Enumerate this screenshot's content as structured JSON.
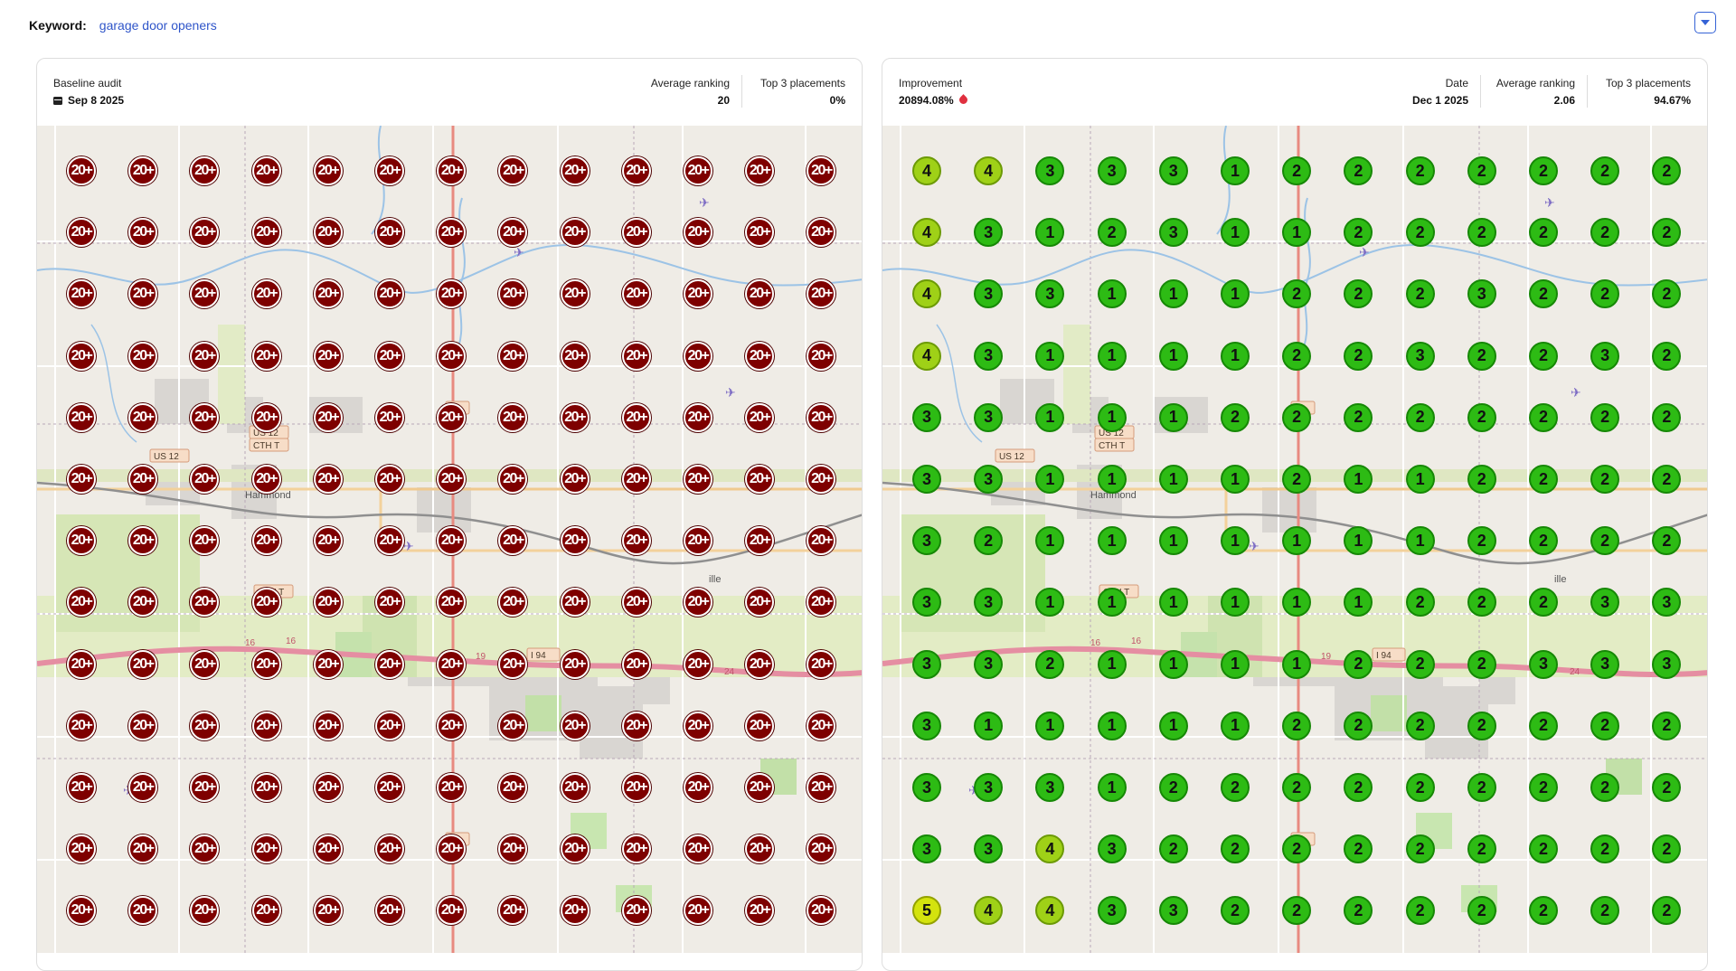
{
  "keyword": {
    "label": "Keyword:",
    "value": "garage door openers"
  },
  "colors": {
    "accent": "#3563d6",
    "red_pin": "#7e0000",
    "green_pin": "#2dbb14",
    "lime_pin": "#9fd117",
    "yellow_pin": "#d4e30e",
    "improvement_icon": "#e0303f"
  },
  "baseline": {
    "title": "Baseline audit",
    "date": "Sep 8 2025",
    "avg_label": "Average ranking",
    "avg_value": "20",
    "top3_label": "Top 3 placements",
    "top3_value": "0%"
  },
  "current": {
    "improvement_label": "Improvement",
    "improvement_value": "20894.08%",
    "date_label": "Date",
    "date_value": "Dec 1 2025",
    "avg_label": "Average ranking",
    "avg_value": "2.06",
    "top3_label": "Top 3 placements",
    "top3_value": "94.67%"
  },
  "map_labels": [
    "US 12",
    "US 12",
    "CTH T",
    "Hammond",
    "CTH T",
    "16",
    "16",
    "19",
    "I 94",
    "24",
    "ille"
  ],
  "baseline_grid": [
    [
      "20+",
      "20+",
      "20+",
      "20+",
      "20+",
      "20+",
      "20+",
      "20+",
      "20+",
      "20+",
      "20+",
      "20+",
      "20+"
    ],
    [
      "20+",
      "20+",
      "20+",
      "20+",
      "20+",
      "20+",
      "20+",
      "20+",
      "20+",
      "20+",
      "20+",
      "20+",
      "20+"
    ],
    [
      "20+",
      "20+",
      "20+",
      "20+",
      "20+",
      "20+",
      "20+",
      "20+",
      "20+",
      "20+",
      "20+",
      "20+",
      "20+"
    ],
    [
      "20+",
      "20+",
      "20+",
      "20+",
      "20+",
      "20+",
      "20+",
      "20+",
      "20+",
      "20+",
      "20+",
      "20+",
      "20+"
    ],
    [
      "20+",
      "20+",
      "20+",
      "20+",
      "20+",
      "20+",
      "20+",
      "20+",
      "20+",
      "20+",
      "20+",
      "20+",
      "20+"
    ],
    [
      "20+",
      "20+",
      "20+",
      "20+",
      "20+",
      "20+",
      "20+",
      "20+",
      "20+",
      "20+",
      "20+",
      "20+",
      "20+"
    ],
    [
      "20+",
      "20+",
      "20+",
      "20+",
      "20+",
      "20+",
      "20+",
      "20+",
      "20+",
      "20+",
      "20+",
      "20+",
      "20+"
    ],
    [
      "20+",
      "20+",
      "20+",
      "20+",
      "20+",
      "20+",
      "20+",
      "20+",
      "20+",
      "20+",
      "20+",
      "20+",
      "20+"
    ],
    [
      "20+",
      "20+",
      "20+",
      "20+",
      "20+",
      "20+",
      "20+",
      "20+",
      "20+",
      "20+",
      "20+",
      "20+",
      "20+"
    ],
    [
      "20+",
      "20+",
      "20+",
      "20+",
      "20+",
      "20+",
      "20+",
      "20+",
      "20+",
      "20+",
      "20+",
      "20+",
      "20+"
    ],
    [
      "20+",
      "20+",
      "20+",
      "20+",
      "20+",
      "20+",
      "20+",
      "20+",
      "20+",
      "20+",
      "20+",
      "20+",
      "20+"
    ],
    [
      "20+",
      "20+",
      "20+",
      "20+",
      "20+",
      "20+",
      "20+",
      "20+",
      "20+",
      "20+",
      "20+",
      "20+",
      "20+"
    ],
    [
      "20+",
      "20+",
      "20+",
      "20+",
      "20+",
      "20+",
      "20+",
      "20+",
      "20+",
      "20+",
      "20+",
      "20+",
      "20+"
    ]
  ],
  "current_grid": [
    [
      "4",
      "4",
      "3",
      "3",
      "3",
      "1",
      "2",
      "2",
      "2",
      "2",
      "2",
      "2",
      "2"
    ],
    [
      "4",
      "3",
      "1",
      "2",
      "3",
      "1",
      "1",
      "2",
      "2",
      "2",
      "2",
      "2",
      "2"
    ],
    [
      "4",
      "3",
      "3",
      "1",
      "1",
      "1",
      "2",
      "2",
      "2",
      "3",
      "2",
      "2",
      "2"
    ],
    [
      "4",
      "3",
      "1",
      "1",
      "1",
      "1",
      "2",
      "2",
      "3",
      "2",
      "2",
      "3",
      "2"
    ],
    [
      "3",
      "3",
      "1",
      "1",
      "1",
      "2",
      "2",
      "2",
      "2",
      "2",
      "2",
      "2",
      "2"
    ],
    [
      "3",
      "3",
      "1",
      "1",
      "1",
      "1",
      "2",
      "1",
      "1",
      "2",
      "2",
      "2",
      "2"
    ],
    [
      "3",
      "2",
      "1",
      "1",
      "1",
      "1",
      "1",
      "1",
      "1",
      "2",
      "2",
      "2",
      "2"
    ],
    [
      "3",
      "3",
      "1",
      "1",
      "1",
      "1",
      "1",
      "1",
      "2",
      "2",
      "2",
      "3",
      "3"
    ],
    [
      "3",
      "3",
      "2",
      "1",
      "1",
      "1",
      "1",
      "2",
      "2",
      "2",
      "3",
      "3",
      "3"
    ],
    [
      "3",
      "1",
      "1",
      "1",
      "1",
      "1",
      "2",
      "2",
      "2",
      "2",
      "2",
      "2",
      "2"
    ],
    [
      "3",
      "3",
      "3",
      "1",
      "2",
      "2",
      "2",
      "2",
      "2",
      "2",
      "2",
      "2",
      "2"
    ],
    [
      "3",
      "3",
      "4",
      "3",
      "2",
      "2",
      "2",
      "2",
      "2",
      "2",
      "2",
      "2",
      "2"
    ],
    [
      "5",
      "4",
      "4",
      "3",
      "3",
      "2",
      "2",
      "2",
      "2",
      "2",
      "2",
      "2",
      "2"
    ]
  ]
}
